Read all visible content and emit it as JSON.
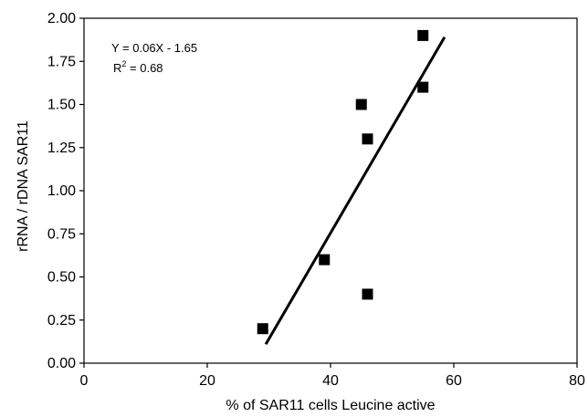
{
  "chart_data": {
    "type": "scatter",
    "xlabel": "% of SAR11 cells Leucine active",
    "ylabel": "rRNA / rDNA SAR11",
    "xlim": [
      0,
      80
    ],
    "ylim": [
      0,
      2.0
    ],
    "x_ticks": [
      0,
      20,
      40,
      60,
      80
    ],
    "y_ticks": [
      0.0,
      0.25,
      0.5,
      0.75,
      1.0,
      1.25,
      1.5,
      1.75,
      2.0
    ],
    "x_tick_labels": [
      "0",
      "20",
      "40",
      "60",
      "80"
    ],
    "y_tick_labels": [
      "0.00",
      "0.25",
      "0.50",
      "0.75",
      "1.00",
      "1.25",
      "1.50",
      "1.75",
      "2.00"
    ],
    "grid": false,
    "marker": "square",
    "color": "#000000",
    "points": [
      {
        "x": 29,
        "y": 0.2
      },
      {
        "x": 39,
        "y": 0.6
      },
      {
        "x": 45,
        "y": 1.5
      },
      {
        "x": 46,
        "y": 1.3
      },
      {
        "x": 46,
        "y": 0.4
      },
      {
        "x": 55,
        "y": 1.6
      },
      {
        "x": 55,
        "y": 1.9
      }
    ],
    "fit_line": {
      "x0": 29.5,
      "y0": 0.11,
      "x1": 58.5,
      "y1": 1.89
    },
    "annotation": {
      "equation": "Y = 0.06X - 1.65",
      "r2_prefix": "R",
      "r2_sup": "2",
      "r2_suffix": " = 0.68"
    }
  }
}
